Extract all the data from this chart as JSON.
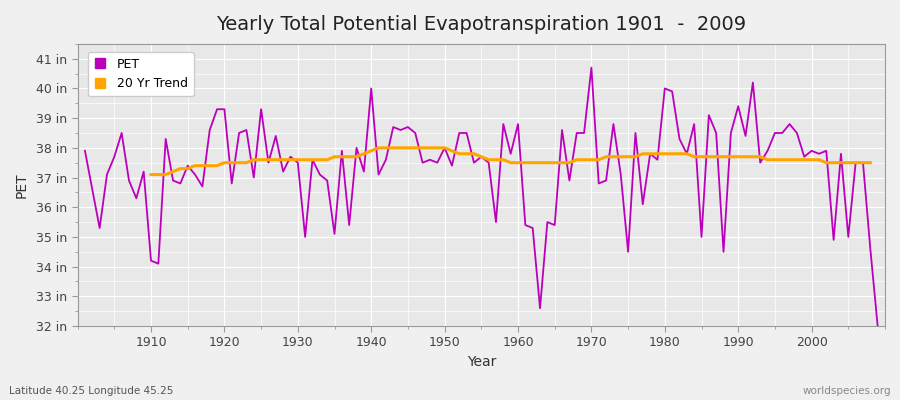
{
  "title": "Yearly Total Potential Evapotranspiration 1901  -  2009",
  "xlabel": "Year",
  "ylabel": "PET",
  "bottom_left": "Latitude 40.25 Longitude 45.25",
  "bottom_right": "worldspecies.org",
  "fig_bg_color": "#f0f0f0",
  "plot_bg_color": "#e8e8e8",
  "pet_color": "#bb00bb",
  "trend_color": "#ffa500",
  "years": [
    1901,
    1902,
    1903,
    1904,
    1905,
    1906,
    1907,
    1908,
    1909,
    1910,
    1911,
    1912,
    1913,
    1914,
    1915,
    1916,
    1917,
    1918,
    1919,
    1920,
    1921,
    1922,
    1923,
    1924,
    1925,
    1926,
    1927,
    1928,
    1929,
    1930,
    1931,
    1932,
    1933,
    1934,
    1935,
    1936,
    1937,
    1938,
    1939,
    1940,
    1941,
    1942,
    1943,
    1944,
    1945,
    1946,
    1947,
    1948,
    1949,
    1950,
    1951,
    1952,
    1953,
    1954,
    1955,
    1956,
    1957,
    1958,
    1959,
    1960,
    1961,
    1962,
    1963,
    1964,
    1965,
    1966,
    1967,
    1968,
    1969,
    1970,
    1971,
    1972,
    1973,
    1974,
    1975,
    1976,
    1977,
    1978,
    1979,
    1980,
    1981,
    1982,
    1983,
    1984,
    1985,
    1986,
    1987,
    1988,
    1989,
    1990,
    1991,
    1992,
    1993,
    1994,
    1995,
    1996,
    1997,
    1998,
    1999,
    2000,
    2001,
    2002,
    2003,
    2004,
    2005,
    2006,
    2007,
    2008,
    2009
  ],
  "pet_values": [
    37.9,
    36.6,
    35.3,
    37.1,
    37.7,
    38.5,
    36.9,
    36.3,
    37.2,
    34.2,
    34.1,
    38.3,
    36.9,
    36.8,
    37.4,
    37.1,
    36.7,
    38.6,
    39.3,
    39.3,
    36.8,
    38.5,
    38.6,
    37.0,
    39.3,
    37.5,
    38.4,
    37.2,
    37.7,
    37.5,
    35.0,
    37.6,
    37.1,
    36.9,
    35.1,
    37.9,
    35.4,
    38.0,
    37.2,
    40.0,
    37.1,
    37.6,
    38.7,
    38.6,
    38.7,
    38.5,
    37.5,
    37.6,
    37.5,
    38.0,
    37.4,
    38.5,
    38.5,
    37.5,
    37.7,
    37.5,
    35.5,
    38.8,
    37.8,
    38.8,
    35.4,
    35.3,
    32.6,
    35.5,
    35.4,
    38.6,
    36.9,
    38.5,
    38.5,
    40.7,
    36.8,
    36.9,
    38.8,
    37.1,
    34.5,
    38.5,
    36.1,
    37.8,
    37.6,
    40.0,
    39.9,
    38.3,
    37.8,
    38.8,
    35.0,
    39.1,
    38.5,
    34.5,
    38.5,
    39.4,
    38.4,
    40.2,
    37.5,
    37.9,
    38.5,
    38.5,
    38.8,
    38.5,
    37.7,
    37.9,
    37.8,
    37.9,
    34.9,
    37.8,
    35.0,
    37.5,
    37.5,
    34.6,
    32.0
  ],
  "trend_values": [
    null,
    null,
    null,
    null,
    null,
    null,
    null,
    null,
    null,
    37.1,
    37.1,
    37.1,
    37.2,
    37.3,
    37.3,
    37.4,
    37.4,
    37.4,
    37.4,
    37.5,
    37.5,
    37.5,
    37.5,
    37.6,
    37.6,
    37.6,
    37.6,
    37.6,
    37.6,
    37.6,
    37.6,
    37.6,
    37.6,
    37.6,
    37.7,
    37.7,
    37.7,
    37.7,
    37.8,
    37.9,
    38.0,
    38.0,
    38.0,
    38.0,
    38.0,
    38.0,
    38.0,
    38.0,
    38.0,
    38.0,
    37.9,
    37.8,
    37.8,
    37.8,
    37.7,
    37.6,
    37.6,
    37.6,
    37.5,
    37.5,
    37.5,
    37.5,
    37.5,
    37.5,
    37.5,
    37.5,
    37.5,
    37.6,
    37.6,
    37.6,
    37.6,
    37.7,
    37.7,
    37.7,
    37.7,
    37.7,
    37.8,
    37.8,
    37.8,
    37.8,
    37.8,
    37.8,
    37.8,
    37.7,
    37.7,
    37.7,
    37.7,
    37.7,
    37.7,
    37.7,
    37.7,
    37.7,
    37.7,
    37.6,
    37.6,
    37.6,
    37.6,
    37.6,
    37.6,
    37.6,
    37.6,
    37.5,
    37.5,
    37.5,
    37.5,
    37.5,
    37.5,
    37.5
  ],
  "ylim": [
    32,
    41.5
  ],
  "yticks": [
    32,
    33,
    34,
    35,
    36,
    37,
    38,
    39,
    40,
    41
  ],
  "ytick_labels": [
    "32 in",
    "33 in",
    "34 in",
    "35 in",
    "36 in",
    "37 in",
    "38 in",
    "39 in",
    "40 in",
    "41 in"
  ],
  "title_fontsize": 14,
  "axis_label_fontsize": 10,
  "tick_fontsize": 9,
  "legend_fontsize": 9
}
